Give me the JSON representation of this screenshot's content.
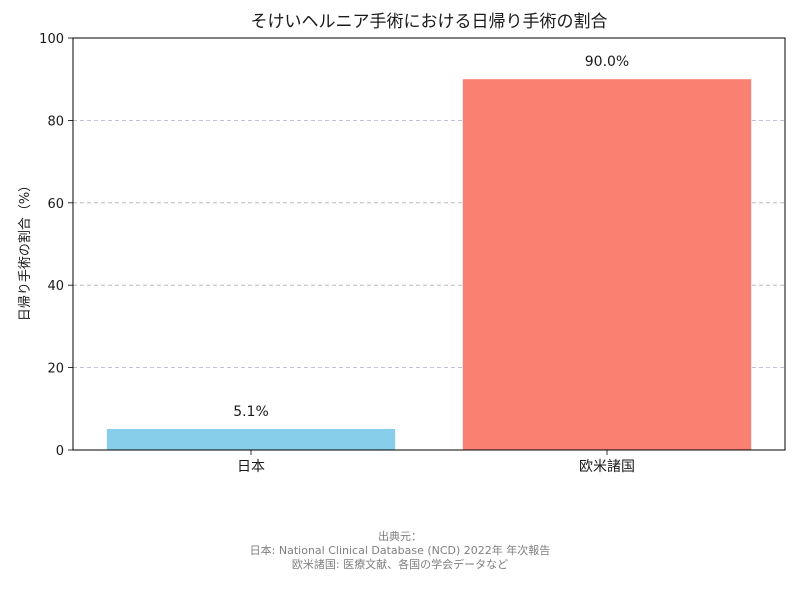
{
  "chart_data": {
    "type": "bar",
    "title": "そけいヘルニア手術における日帰り手術の割合",
    "xlabel": "",
    "ylabel": "日帰り手術の割合（%）",
    "categories": [
      "日本",
      "欧米諸国"
    ],
    "values": [
      5.1,
      90.0
    ],
    "value_labels": [
      "5.1%",
      "90.0%"
    ],
    "colors": [
      "#87ceeb",
      "#fa8072"
    ],
    "ylim": [
      0,
      100
    ],
    "yticks": [
      "0",
      "20",
      "40",
      "60",
      "80",
      "100"
    ],
    "grid": "y, dashed",
    "legend": "none"
  },
  "source": {
    "heading": "出典元：",
    "lines": [
      "日本: National Clinical Database (NCD) 2022年 年次報告",
      "欧米諸国: 医療文献、各国の学会データなど"
    ]
  }
}
